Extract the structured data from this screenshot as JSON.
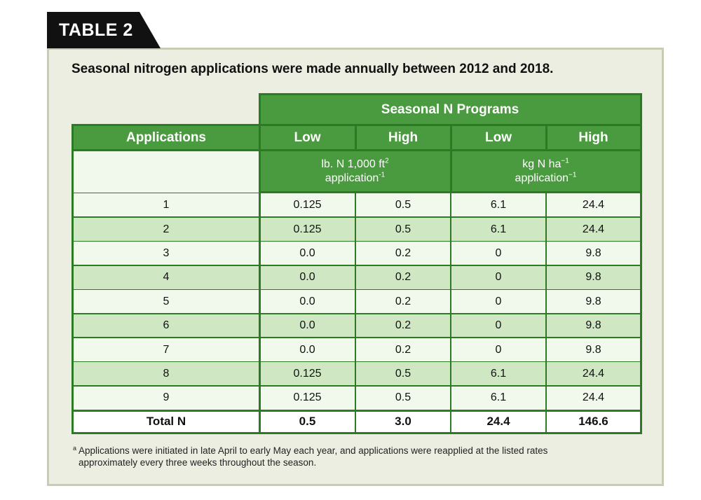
{
  "tag": "TABLE 2",
  "subtitle": "Seasonal nitrogen applications were made annually between 2012 and 2018.",
  "table": {
    "group_header": "Seasonal N Programs",
    "col_header": "Applications",
    "subcols": [
      "Low",
      "High",
      "Low",
      "High"
    ],
    "unit_imperial": {
      "main": "lb. N 1,000 ft",
      "sup": "2",
      "line2": "application",
      "sup2": "-1"
    },
    "unit_metric": {
      "main": "kg N ha",
      "sup": "−1",
      "line2": "application",
      "sup2": "−1"
    },
    "rows": [
      {
        "app": "1",
        "v": [
          "0.125",
          "0.5",
          "6.1",
          "24.4"
        ]
      },
      {
        "app": "2",
        "v": [
          "0.125",
          "0.5",
          "6.1",
          "24.4"
        ]
      },
      {
        "app": "3",
        "v": [
          "0.0",
          "0.2",
          "0",
          "9.8"
        ]
      },
      {
        "app": "4",
        "v": [
          "0.0",
          "0.2",
          "0",
          "9.8"
        ]
      },
      {
        "app": "5",
        "v": [
          "0.0",
          "0.2",
          "0",
          "9.8"
        ]
      },
      {
        "app": "6",
        "v": [
          "0.0",
          "0.2",
          "0",
          "9.8"
        ]
      },
      {
        "app": "7",
        "v": [
          "0.0",
          "0.2",
          "0",
          "9.8"
        ]
      },
      {
        "app": "8",
        "v": [
          "0.125",
          "0.5",
          "6.1",
          "24.4"
        ]
      },
      {
        "app": "9",
        "v": [
          "0.125",
          "0.5",
          "6.1",
          "24.4"
        ]
      }
    ],
    "total": {
      "label": "Total N",
      "v": [
        "0.5",
        "3.0",
        "24.4",
        "146.6"
      ]
    }
  },
  "footnote": {
    "mark": "a",
    "line1": "Applications were initiated in late April to early May each year, and applications were reapplied at the listed rates",
    "line2": "approximately every three weeks throughout the season."
  },
  "colors": {
    "header_green": "#4a9b3f",
    "row_light": "#f1f8ec",
    "row_dark": "#cfe8c3",
    "rule": "#2c7a24"
  }
}
